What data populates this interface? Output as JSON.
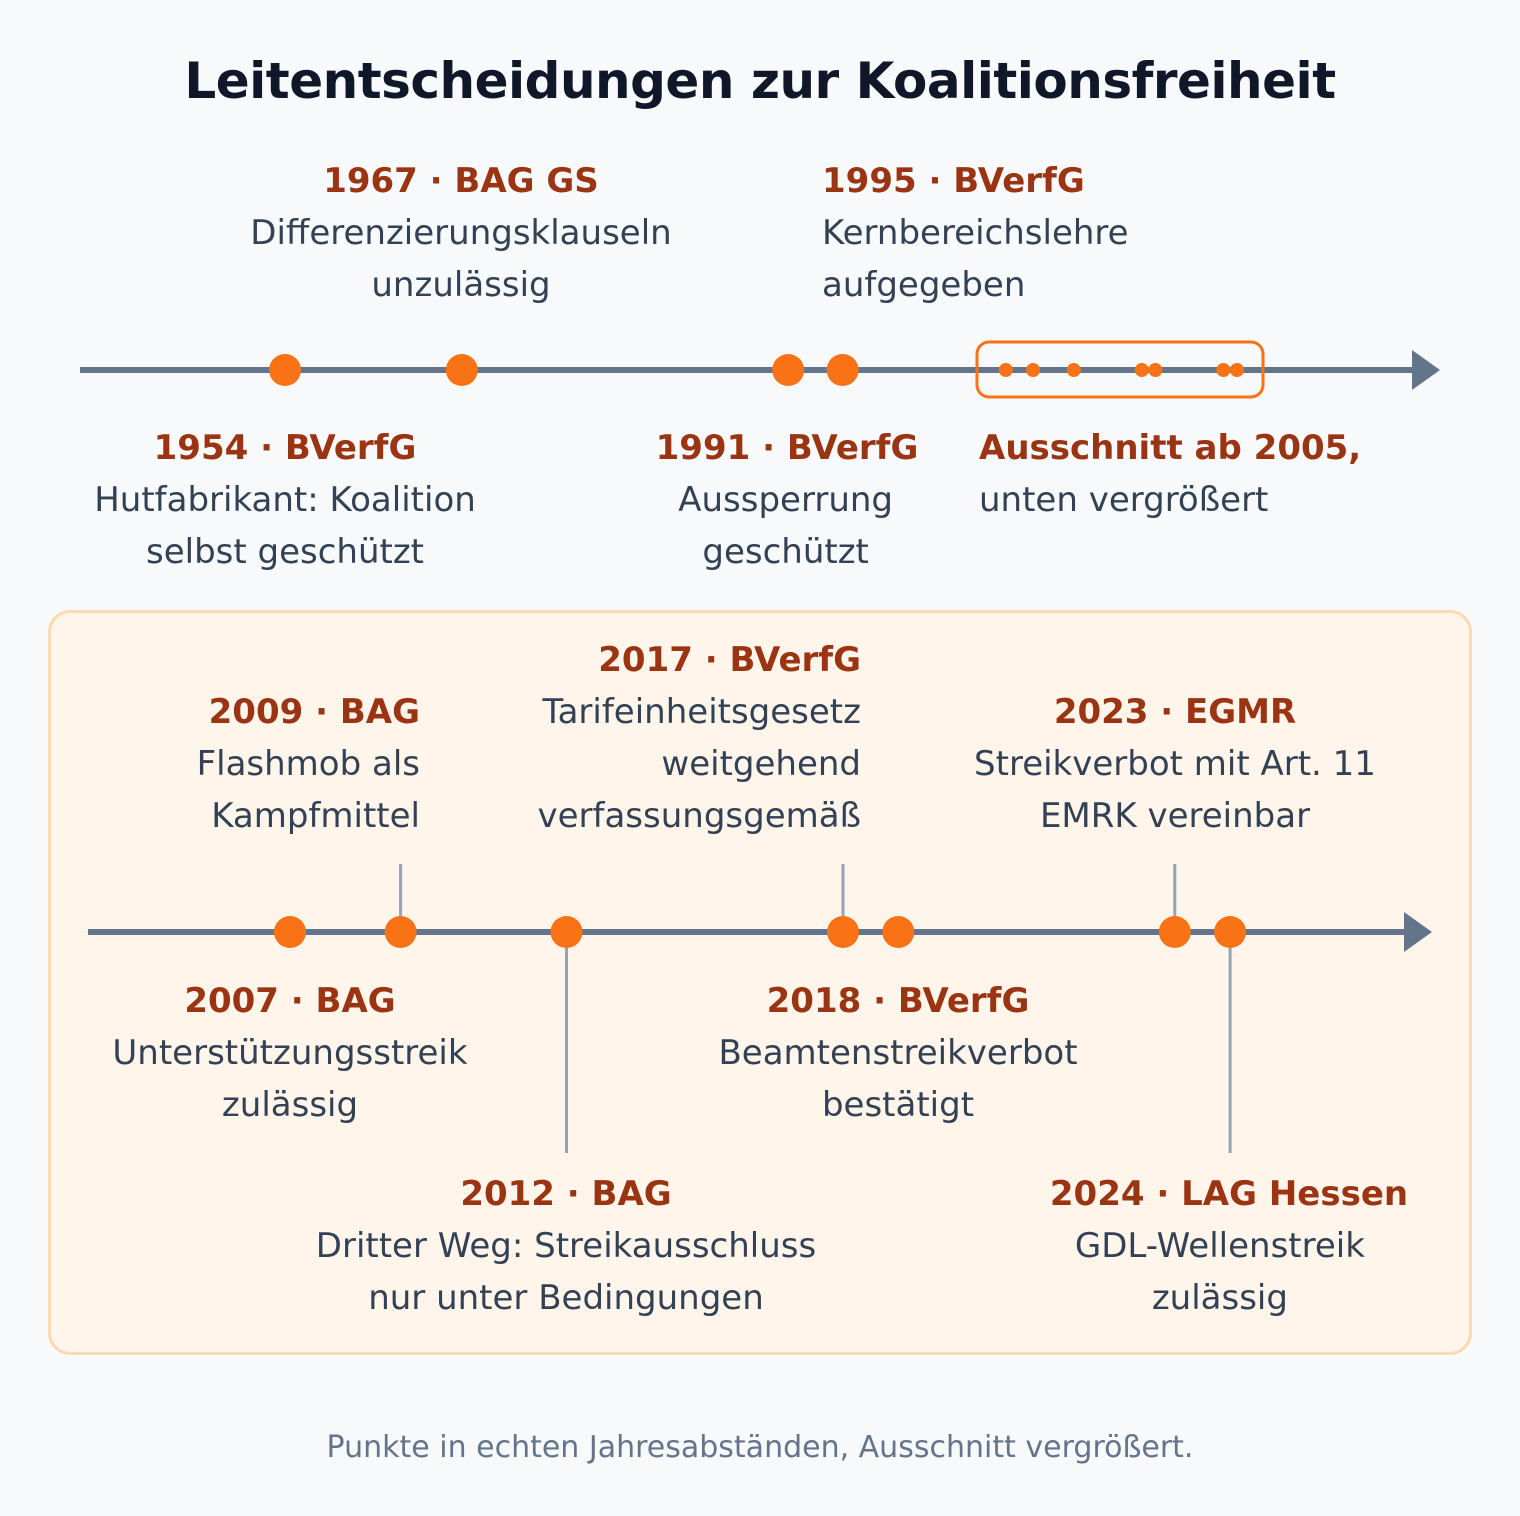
{
  "title": "Leitentscheidungen zur Koalitionsfreiheit",
  "overview": {
    "events": [
      {
        "year": 1954,
        "head": "1954 · BVerfG",
        "desc": "Hutfabrikant: Koalition selbst geschützt"
      },
      {
        "year": 1967,
        "head": "1967 · BAG GS",
        "desc": "Differenzierungsklauseln unzulässig"
      },
      {
        "year": 1991,
        "head": "1991 · BVerfG",
        "desc": "Aussperrung geschützt"
      },
      {
        "year": 1995,
        "head": "1995 · BVerfG",
        "desc": "Kernbereichslehre aufgegeben"
      }
    ],
    "zoom_range_start_year": 2005,
    "zoom_note_head": "Ausschnitt ab 2005,",
    "zoom_note_desc": "unten vergrößert"
  },
  "detail": {
    "events": [
      {
        "year": 2007,
        "head": "2007 · BAG",
        "desc": "Unterstützungsstreik zulässig"
      },
      {
        "year": 2009,
        "head": "2009 · BAG",
        "desc": "Flashmob als Kampfmittel"
      },
      {
        "year": 2012,
        "head": "2012 · BAG",
        "desc": "Dritter Weg: Streikausschluss nur unter Bedingungen"
      },
      {
        "year": 2017,
        "head": "2017 · BVerfG",
        "desc": "Tarifeinheitsgesetz weitgehend verfassungsgemäß"
      },
      {
        "year": 2018,
        "head": "2018 · BVerfG",
        "desc": "Beamtenstreikverbot bestätigt"
      },
      {
        "year": 2023,
        "head": "2023 · EGMR",
        "desc": "Streikverbot mit Art. 11 EMRK vereinbar"
      },
      {
        "year": 2024,
        "head": "2024 · LAG Hessen",
        "desc": "GDL-Wellenstreik zulässig"
      }
    ]
  },
  "footer": "Punkte in echten Jahresabständen, Ausschnitt vergrößert.",
  "colors": {
    "dot": "#f97316",
    "axis": "#64748b",
    "head": "#9a3412",
    "box_fill": "#fff5eb",
    "box_border": "#fcd9b0"
  }
}
